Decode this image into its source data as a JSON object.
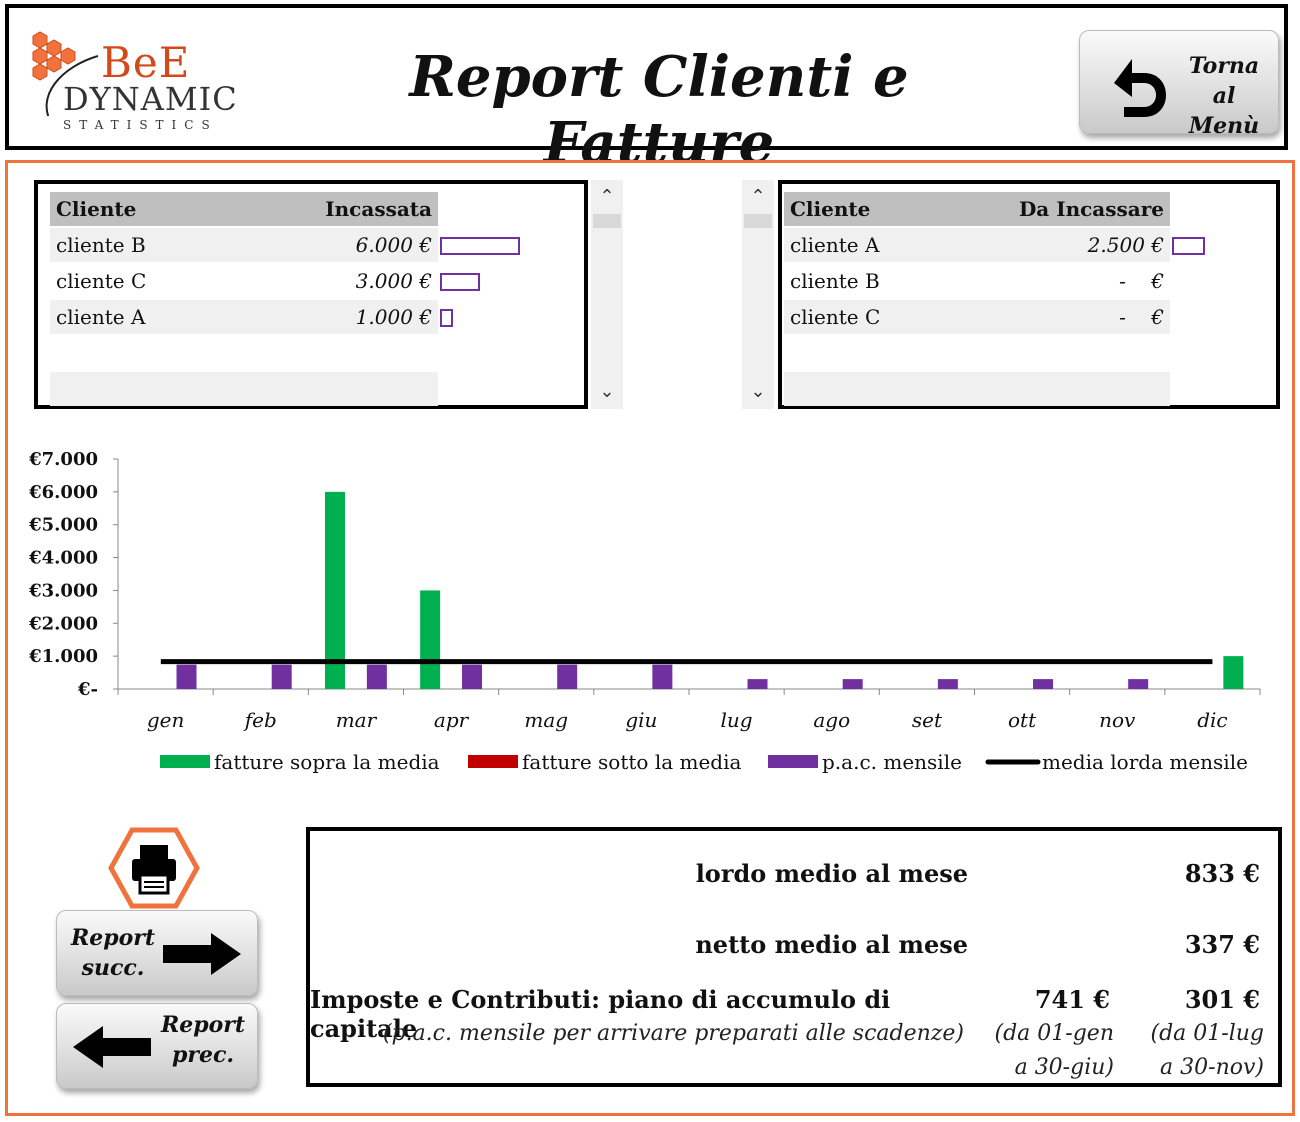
{
  "logo": {
    "line1": "BeE",
    "line2": "DYNAMIC",
    "line3": "STATISTICS"
  },
  "header": {
    "title": "Report Clienti e Fatture",
    "menu_button_line1": "Torna al",
    "menu_button_line2": "Menù"
  },
  "incassate_table": {
    "headers": [
      "Cliente",
      "Incassata"
    ],
    "rows": [
      {
        "cliente": "cliente B",
        "value": "6.000 €",
        "amount": 6000
      },
      {
        "cliente": "cliente C",
        "value": "3.000 €",
        "amount": 3000
      },
      {
        "cliente": "cliente A",
        "value": "1.000 €",
        "amount": 1000
      }
    ]
  },
  "da_incassare_table": {
    "headers": [
      "Cliente",
      "Da Incassare"
    ],
    "rows": [
      {
        "cliente": "cliente A",
        "value": "2.500 €",
        "amount": 2500
      },
      {
        "cliente": "cliente B",
        "value": "-    €",
        "amount": 0
      },
      {
        "cliente": "cliente C",
        "value": "-    €",
        "amount": 0
      }
    ]
  },
  "chart_data": {
    "type": "bar",
    "categories": [
      "gen",
      "feb",
      "mar",
      "apr",
      "mag",
      "giu",
      "lug",
      "ago",
      "set",
      "ott",
      "nov",
      "dic"
    ],
    "y_tick_labels": [
      "€-",
      "€1.000",
      "€2.000",
      "€3.000",
      "€4.000",
      "€5.000",
      "€6.000",
      "€7.000"
    ],
    "ylim": [
      0,
      7000
    ],
    "series": [
      {
        "name": "fatture sopra la media",
        "color": "#00b050",
        "values": [
          0,
          0,
          6000,
          3000,
          0,
          0,
          0,
          0,
          0,
          0,
          0,
          1000
        ]
      },
      {
        "name": "fatture sotto la media",
        "color": "#c00000",
        "values": [
          0,
          0,
          0,
          0,
          0,
          0,
          0,
          0,
          0,
          0,
          0,
          0
        ]
      },
      {
        "name": "p.a.c. mensile",
        "color": "#7030a0",
        "values": [
          741,
          741,
          741,
          741,
          741,
          741,
          301,
          301,
          301,
          301,
          301,
          0
        ]
      },
      {
        "name": "media lorda mensile",
        "color": "#000000",
        "type": "line",
        "values": [
          833,
          833,
          833,
          833,
          833,
          833,
          833,
          833,
          833,
          833,
          833,
          833
        ]
      }
    ],
    "legend_position": "bottom",
    "grid": false
  },
  "summary": {
    "lordo_label": "lordo medio al mese",
    "lordo_value": "833 €",
    "netto_label": "netto medio al mese",
    "netto_value": "337 €",
    "imposte_label": "Imposte e Contributi: piano di accumulo di capitale",
    "imposte_note": "(p.a.c. mensile per arrivare preparati alle scadenze)",
    "pac1_value": "741 €",
    "pac1_range1": "(da 01-gen",
    "pac1_range2": "a 30-giu)",
    "pac2_value": "301 €",
    "pac2_range1": "(da 01-lug",
    "pac2_range2": "a 30-nov)"
  },
  "nav": {
    "next_line1": "Report",
    "next_line2": "succ.",
    "prev_line1": "Report",
    "prev_line2": "prec."
  }
}
